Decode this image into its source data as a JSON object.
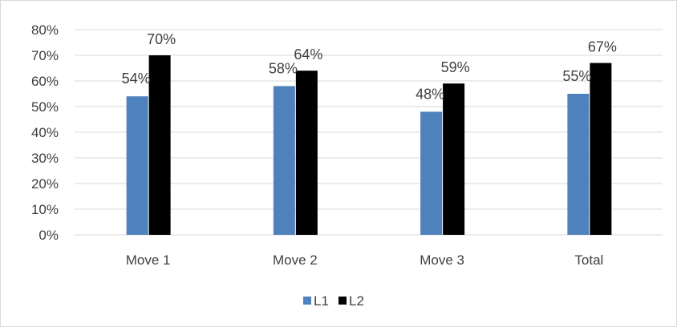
{
  "chart_data": {
    "type": "bar",
    "categories": [
      "Move 1",
      "Move 2",
      "Move 3",
      "Total"
    ],
    "series": [
      {
        "name": "L1",
        "values": [
          54,
          58,
          48,
          55
        ],
        "labels": [
          "54%",
          "58%",
          "48%",
          "55%"
        ],
        "color": "#4f81bd"
      },
      {
        "name": "L2",
        "values": [
          70,
          64,
          59,
          67
        ],
        "labels": [
          "70%",
          "64%",
          "59%",
          "67%"
        ],
        "color": "#000000"
      }
    ],
    "yticks": [
      {
        "value": 0,
        "label": "0%"
      },
      {
        "value": 10,
        "label": "10%"
      },
      {
        "value": 20,
        "label": "20%"
      },
      {
        "value": 30,
        "label": "30%"
      },
      {
        "value": 40,
        "label": "40%"
      },
      {
        "value": 50,
        "label": "50%"
      },
      {
        "value": 60,
        "label": "60%"
      },
      {
        "value": 70,
        "label": "70%"
      },
      {
        "value": 80,
        "label": "80%"
      }
    ],
    "ylim": [
      0,
      80
    ],
    "grid": true,
    "legend_position": "bottom"
  }
}
